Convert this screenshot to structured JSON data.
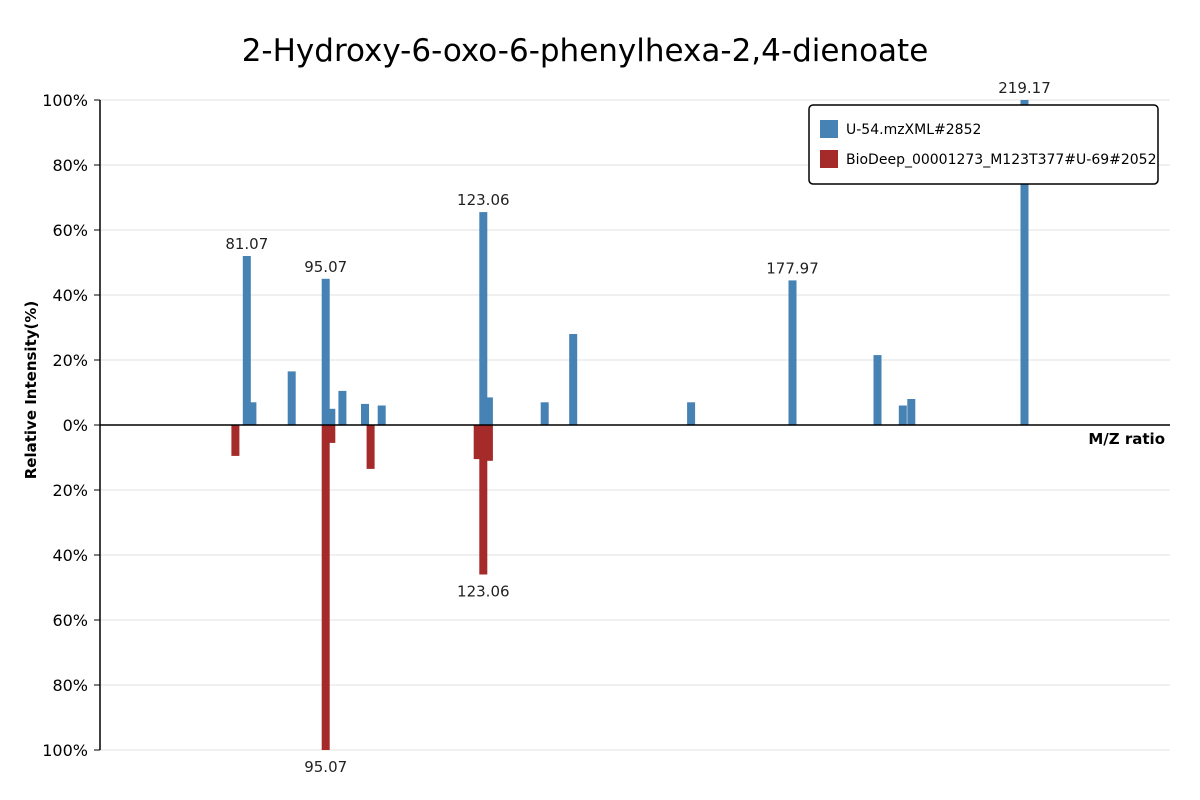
{
  "chart_data": {
    "type": "bar",
    "title": "2-Hydroxy-6-oxo-6-phenylhexa-2,4-dienoate",
    "xlabel": "M/Z ratio",
    "ylabel": "Relative Intensity(%)",
    "y_ticks_upper": [
      "100%",
      "80%",
      "60%",
      "40%",
      "20%",
      "0%"
    ],
    "y_ticks_lower": [
      "20%",
      "40%",
      "60%",
      "80%",
      "100%"
    ],
    "ylim": [
      -100,
      100
    ],
    "xlim": [
      55,
      245
    ],
    "grid": true,
    "legend_position": "top-right",
    "colors": {
      "upper": "#4682b4",
      "lower": "#a52a2a"
    },
    "series": [
      {
        "name": "U-54.mzXML#2852",
        "direction": "up",
        "peaks": [
          {
            "mz": 81.07,
            "intensity": 52,
            "label": "81.07"
          },
          {
            "mz": 82.07,
            "intensity": 7,
            "label": ""
          },
          {
            "mz": 89.04,
            "intensity": 16.5,
            "label": ""
          },
          {
            "mz": 95.07,
            "intensity": 45,
            "label": "95.07"
          },
          {
            "mz": 96.07,
            "intensity": 5,
            "label": ""
          },
          {
            "mz": 98.04,
            "intensity": 10.5,
            "label": ""
          },
          {
            "mz": 102.06,
            "intensity": 6.5,
            "label": ""
          },
          {
            "mz": 105.03,
            "intensity": 6,
            "label": ""
          },
          {
            "mz": 123.06,
            "intensity": 65.5,
            "label": "123.06"
          },
          {
            "mz": 124.06,
            "intensity": 8.5,
            "label": ""
          },
          {
            "mz": 133.96,
            "intensity": 7,
            "label": ""
          },
          {
            "mz": 139.02,
            "intensity": 28,
            "label": ""
          },
          {
            "mz": 159.97,
            "intensity": 7,
            "label": ""
          },
          {
            "mz": 177.97,
            "intensity": 44.5,
            "label": "177.97"
          },
          {
            "mz": 193.06,
            "intensity": 21.5,
            "label": ""
          },
          {
            "mz": 197.56,
            "intensity": 6,
            "label": ""
          },
          {
            "mz": 199.06,
            "intensity": 8,
            "label": ""
          },
          {
            "mz": 219.17,
            "intensity": 100,
            "label": "219.17"
          }
        ]
      },
      {
        "name": "BioDeep_00001273_M123T377#U-69#2052",
        "direction": "down",
        "peaks": [
          {
            "mz": 79.05,
            "intensity": 9.5,
            "label": ""
          },
          {
            "mz": 95.07,
            "intensity": 100,
            "label": "95.07"
          },
          {
            "mz": 96.07,
            "intensity": 5.5,
            "label": ""
          },
          {
            "mz": 103.05,
            "intensity": 13.5,
            "label": ""
          },
          {
            "mz": 122.06,
            "intensity": 10.5,
            "label": ""
          },
          {
            "mz": 123.06,
            "intensity": 46,
            "label": "123.06"
          },
          {
            "mz": 124.06,
            "intensity": 11,
            "label": ""
          }
        ]
      }
    ]
  }
}
